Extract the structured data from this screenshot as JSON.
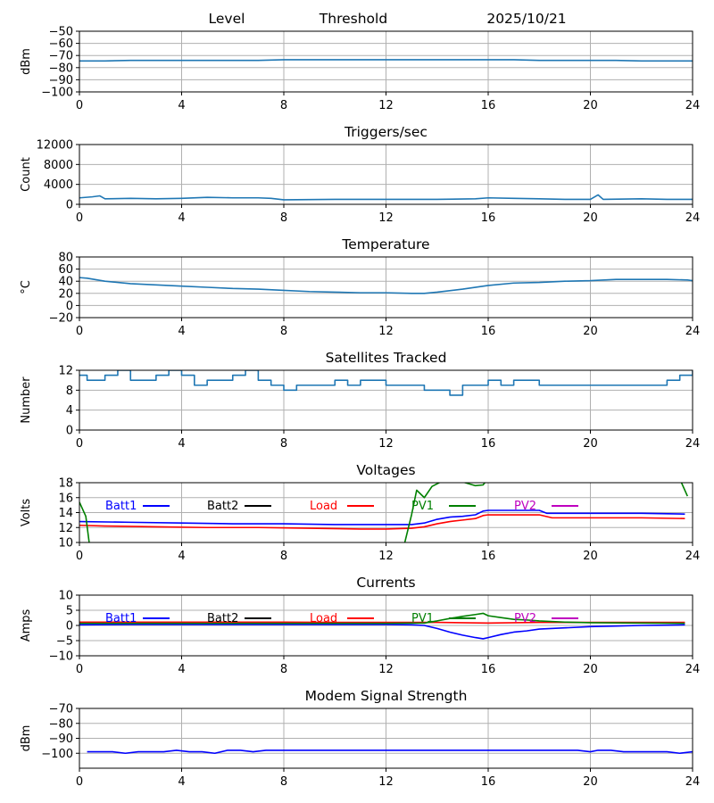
{
  "chart_data": [
    {
      "type": "line",
      "title_items": [
        "Level",
        "Threshold",
        "2025/10/21"
      ],
      "title": "",
      "xlabel": "",
      "ylabel": "dBm",
      "xlim": [
        0,
        24
      ],
      "ylim": [
        -100,
        -50
      ],
      "xticks": [
        0,
        4,
        8,
        12,
        16,
        20,
        24
      ],
      "yticks": [
        -100,
        -90,
        -80,
        -70,
        -60,
        -50
      ],
      "grid": true,
      "series": [
        {
          "color": "#1f77b4",
          "x": [
            0,
            1,
            2,
            3,
            4,
            5,
            6,
            7,
            8,
            9,
            10,
            11,
            12,
            13,
            14,
            15,
            16,
            17,
            18,
            19,
            20,
            21,
            22,
            23,
            24
          ],
          "y": [
            -74.5,
            -74.5,
            -74,
            -74,
            -74,
            -74,
            -74,
            -74,
            -73.5,
            -73.5,
            -73.5,
            -73.5,
            -73.5,
            -73.5,
            -73.5,
            -73.5,
            -73.5,
            -73.5,
            -74,
            -74,
            -74,
            -74,
            -74.5,
            -74.5,
            -74.5
          ]
        }
      ]
    },
    {
      "type": "line",
      "title": "Triggers/sec",
      "xlabel": "",
      "ylabel": "Count",
      "xlim": [
        0,
        24
      ],
      "ylim": [
        0,
        12000
      ],
      "xticks": [
        0,
        4,
        8,
        12,
        16,
        20,
        24
      ],
      "yticks": [
        0,
        4000,
        8000,
        12000
      ],
      "grid": true,
      "series": [
        {
          "color": "#1f77b4",
          "x": [
            0,
            0.5,
            0.8,
            1,
            2,
            3,
            4,
            5,
            6,
            7,
            7.5,
            8,
            10,
            12,
            14,
            15.5,
            16,
            17,
            18,
            19,
            20,
            20.3,
            20.5,
            22,
            23,
            24
          ],
          "y": [
            1300,
            1500,
            1700,
            1100,
            1200,
            1100,
            1200,
            1400,
            1300,
            1300,
            1200,
            900,
            1000,
            1000,
            1000,
            1100,
            1300,
            1200,
            1100,
            1000,
            1000,
            1900,
            1000,
            1100,
            1000,
            1000
          ]
        }
      ]
    },
    {
      "type": "line",
      "title": "Temperature",
      "xlabel": "",
      "ylabel": "°C",
      "xlim": [
        0,
        24
      ],
      "ylim": [
        -20,
        80
      ],
      "xticks": [
        0,
        4,
        8,
        12,
        16,
        20,
        24
      ],
      "yticks": [
        -20,
        0,
        20,
        40,
        60,
        80
      ],
      "grid": true,
      "series": [
        {
          "color": "#1f77b4",
          "x": [
            0,
            0.3,
            1,
            2,
            3,
            4,
            5,
            6,
            7,
            8,
            9,
            10,
            11,
            12,
            13,
            13.5,
            14,
            15,
            16,
            17,
            18,
            19,
            20,
            21,
            22,
            23,
            23.8,
            24
          ],
          "y": [
            46,
            45,
            40,
            36,
            34,
            32,
            30,
            28,
            27,
            25,
            23,
            22,
            21,
            21,
            20,
            20,
            22,
            27,
            33,
            37,
            38,
            40,
            41,
            43,
            43,
            43,
            42,
            41
          ]
        }
      ]
    },
    {
      "type": "line",
      "title": "Satellites Tracked",
      "xlabel": "",
      "ylabel": "Number",
      "xlim": [
        0,
        24
      ],
      "ylim": [
        0,
        12
      ],
      "xticks": [
        0,
        4,
        8,
        12,
        16,
        20,
        24
      ],
      "yticks": [
        0,
        4,
        8,
        12
      ],
      "grid": true,
      "series": [
        {
          "color": "#1f77b4",
          "step": true,
          "x": [
            0,
            0.3,
            1,
            1.5,
            2,
            3,
            3.5,
            4,
            4.5,
            5,
            6,
            6.5,
            7,
            7.5,
            8,
            8.5,
            9,
            10,
            10.5,
            11,
            12,
            13,
            13.5,
            14,
            14.5,
            15,
            16,
            16.5,
            17,
            18,
            19,
            20,
            21,
            22,
            23,
            23.5,
            24
          ],
          "y": [
            11,
            10,
            11,
            12,
            10,
            11,
            12,
            11,
            9,
            10,
            11,
            12,
            10,
            9,
            8,
            9,
            9,
            10,
            9,
            10,
            9,
            9,
            8,
            8,
            7,
            9,
            10,
            9,
            10,
            9,
            9,
            9,
            9,
            9,
            10,
            11,
            12
          ]
        }
      ]
    },
    {
      "type": "line",
      "title": "Voltages",
      "xlabel": "",
      "ylabel": "Volts",
      "xlim": [
        0,
        24
      ],
      "ylim": [
        10,
        18
      ],
      "xticks": [
        0,
        4,
        8,
        12,
        16,
        20,
        24
      ],
      "yticks": [
        10,
        12,
        14,
        16,
        18
      ],
      "grid": true,
      "legend": [
        "Batt1",
        "Batt2",
        "Load",
        "PV1",
        "PV2"
      ],
      "series": [
        {
          "name": "Batt1",
          "color": "#0000ff",
          "x": [
            0,
            2,
            4,
            6,
            8,
            10,
            12,
            13,
            13.5,
            14,
            14.5,
            15,
            15.5,
            15.8,
            16,
            17,
            18,
            18.3,
            19,
            20,
            22,
            23.7
          ],
          "y": [
            12.8,
            12.7,
            12.6,
            12.5,
            12.5,
            12.4,
            12.4,
            12.4,
            12.6,
            13.1,
            13.4,
            13.5,
            13.7,
            14.2,
            14.3,
            14.3,
            14.3,
            13.9,
            13.9,
            13.9,
            13.9,
            13.8
          ]
        },
        {
          "name": "Batt2",
          "color": "#000000",
          "x": [],
          "y": []
        },
        {
          "name": "Load",
          "color": "#ff0000",
          "x": [
            0,
            1,
            3,
            5,
            7,
            9,
            11,
            12,
            13,
            13.5,
            14,
            14.5,
            15,
            15.5,
            15.8,
            16,
            17,
            18,
            18.5,
            19,
            20,
            22,
            23.7
          ],
          "y": [
            12.3,
            12.2,
            12.1,
            12.0,
            12.0,
            11.9,
            11.8,
            11.8,
            11.9,
            12.1,
            12.5,
            12.8,
            13.0,
            13.2,
            13.6,
            13.7,
            13.7,
            13.7,
            13.3,
            13.3,
            13.3,
            13.3,
            13.2
          ]
        },
        {
          "name": "PV1",
          "color": "#008000",
          "x": [
            0,
            0.25,
            0.4,
            12.7,
            13,
            13.2,
            13.5,
            13.8,
            14.2,
            15,
            15.5,
            15.8,
            16.1,
            23.3,
            23.5,
            23.8
          ],
          "y": [
            15.4,
            13.5,
            9.5,
            9.5,
            13.7,
            17,
            16,
            17.5,
            18.2,
            18.1,
            17.6,
            17.7,
            19,
            19,
            18.5,
            16.2
          ]
        },
        {
          "name": "PV2",
          "color": "#bf00bf",
          "x": [],
          "y": []
        }
      ]
    },
    {
      "type": "line",
      "title": "Currents",
      "xlabel": "",
      "ylabel": "Amps",
      "xlim": [
        0,
        24
      ],
      "ylim": [
        -10,
        10
      ],
      "xticks": [
        0,
        4,
        8,
        12,
        16,
        20,
        24
      ],
      "yticks": [
        -10,
        -5,
        0,
        5,
        10
      ],
      "grid": true,
      "legend": [
        "Batt1",
        "Batt2",
        "Load",
        "PV1",
        "PV2"
      ],
      "series": [
        {
          "name": "Batt1",
          "color": "#0000ff",
          "x": [
            0,
            2,
            4,
            6,
            8,
            10,
            12,
            13,
            13.5,
            14,
            14.5,
            15,
            15.5,
            15.8,
            16,
            16.5,
            17,
            17.5,
            18,
            19,
            20,
            21,
            22,
            23,
            23.7
          ],
          "y": [
            0.2,
            0.3,
            0.3,
            0.3,
            0.3,
            0.3,
            0.3,
            0.2,
            0,
            -1.0,
            -2.2,
            -3.2,
            -4.0,
            -4.4,
            -4.0,
            -3.0,
            -2.2,
            -1.8,
            -1.2,
            -0.8,
            -0.4,
            -0.2,
            0,
            0.1,
            0.2
          ]
        },
        {
          "name": "Batt2",
          "color": "#000000",
          "x": [],
          "y": []
        },
        {
          "name": "Load",
          "color": "#ff0000",
          "x": [
            0,
            2,
            4,
            6,
            8,
            10,
            12,
            14,
            16,
            18,
            20,
            22,
            23.7
          ],
          "y": [
            1.1,
            1.1,
            1.1,
            1.1,
            1.1,
            1.0,
            1.0,
            1.0,
            0.8,
            1.0,
            1.0,
            1.0,
            1.0
          ]
        },
        {
          "name": "PV1",
          "color": "#008000",
          "x": [
            0,
            2,
            4,
            6,
            8,
            10,
            12,
            13.5,
            14,
            14.5,
            15,
            15.5,
            15.8,
            16,
            16.5,
            17,
            17.5,
            18,
            19,
            20,
            22,
            23.7
          ],
          "y": [
            0.7,
            0.7,
            0.7,
            0.7,
            0.7,
            0.7,
            0.7,
            0.8,
            1.5,
            2.3,
            3.0,
            3.6,
            4.0,
            3.2,
            2.6,
            2.0,
            1.8,
            1.5,
            1.1,
            0.9,
            0.8,
            0.7
          ]
        },
        {
          "name": "PV2",
          "color": "#bf00bf",
          "x": [],
          "y": []
        }
      ]
    },
    {
      "type": "line",
      "title": "Modem Signal Strength",
      "xlabel": "",
      "ylabel": "dBm",
      "xlim": [
        0,
        24
      ],
      "ylim": [
        -110,
        -70
      ],
      "xticks": [
        0,
        4,
        8,
        12,
        16,
        20,
        24
      ],
      "yticks": [
        -100,
        -90,
        -80,
        -70
      ],
      "grid": true,
      "series": [
        {
          "color": "#0000ff",
          "x": [
            0.3,
            1.3,
            1.8,
            2.3,
            3.3,
            3.8,
            4.3,
            4.8,
            5.3,
            5.8,
            6.3,
            6.8,
            7.3,
            7.8,
            8.3,
            9.3,
            10.3,
            12,
            14,
            16,
            18,
            19.5,
            20,
            20.3,
            20.8,
            21.3,
            22,
            23,
            23.5,
            24
          ],
          "y": [
            -99,
            -99,
            -100,
            -99,
            -99,
            -98,
            -99,
            -99,
            -100,
            -98,
            -98,
            -99,
            -98,
            -98,
            -98,
            -98,
            -98,
            -98,
            -98,
            -98,
            -98,
            -98,
            -99,
            -98,
            -98,
            -99,
            -99,
            -99,
            -100,
            -99
          ]
        }
      ]
    }
  ]
}
